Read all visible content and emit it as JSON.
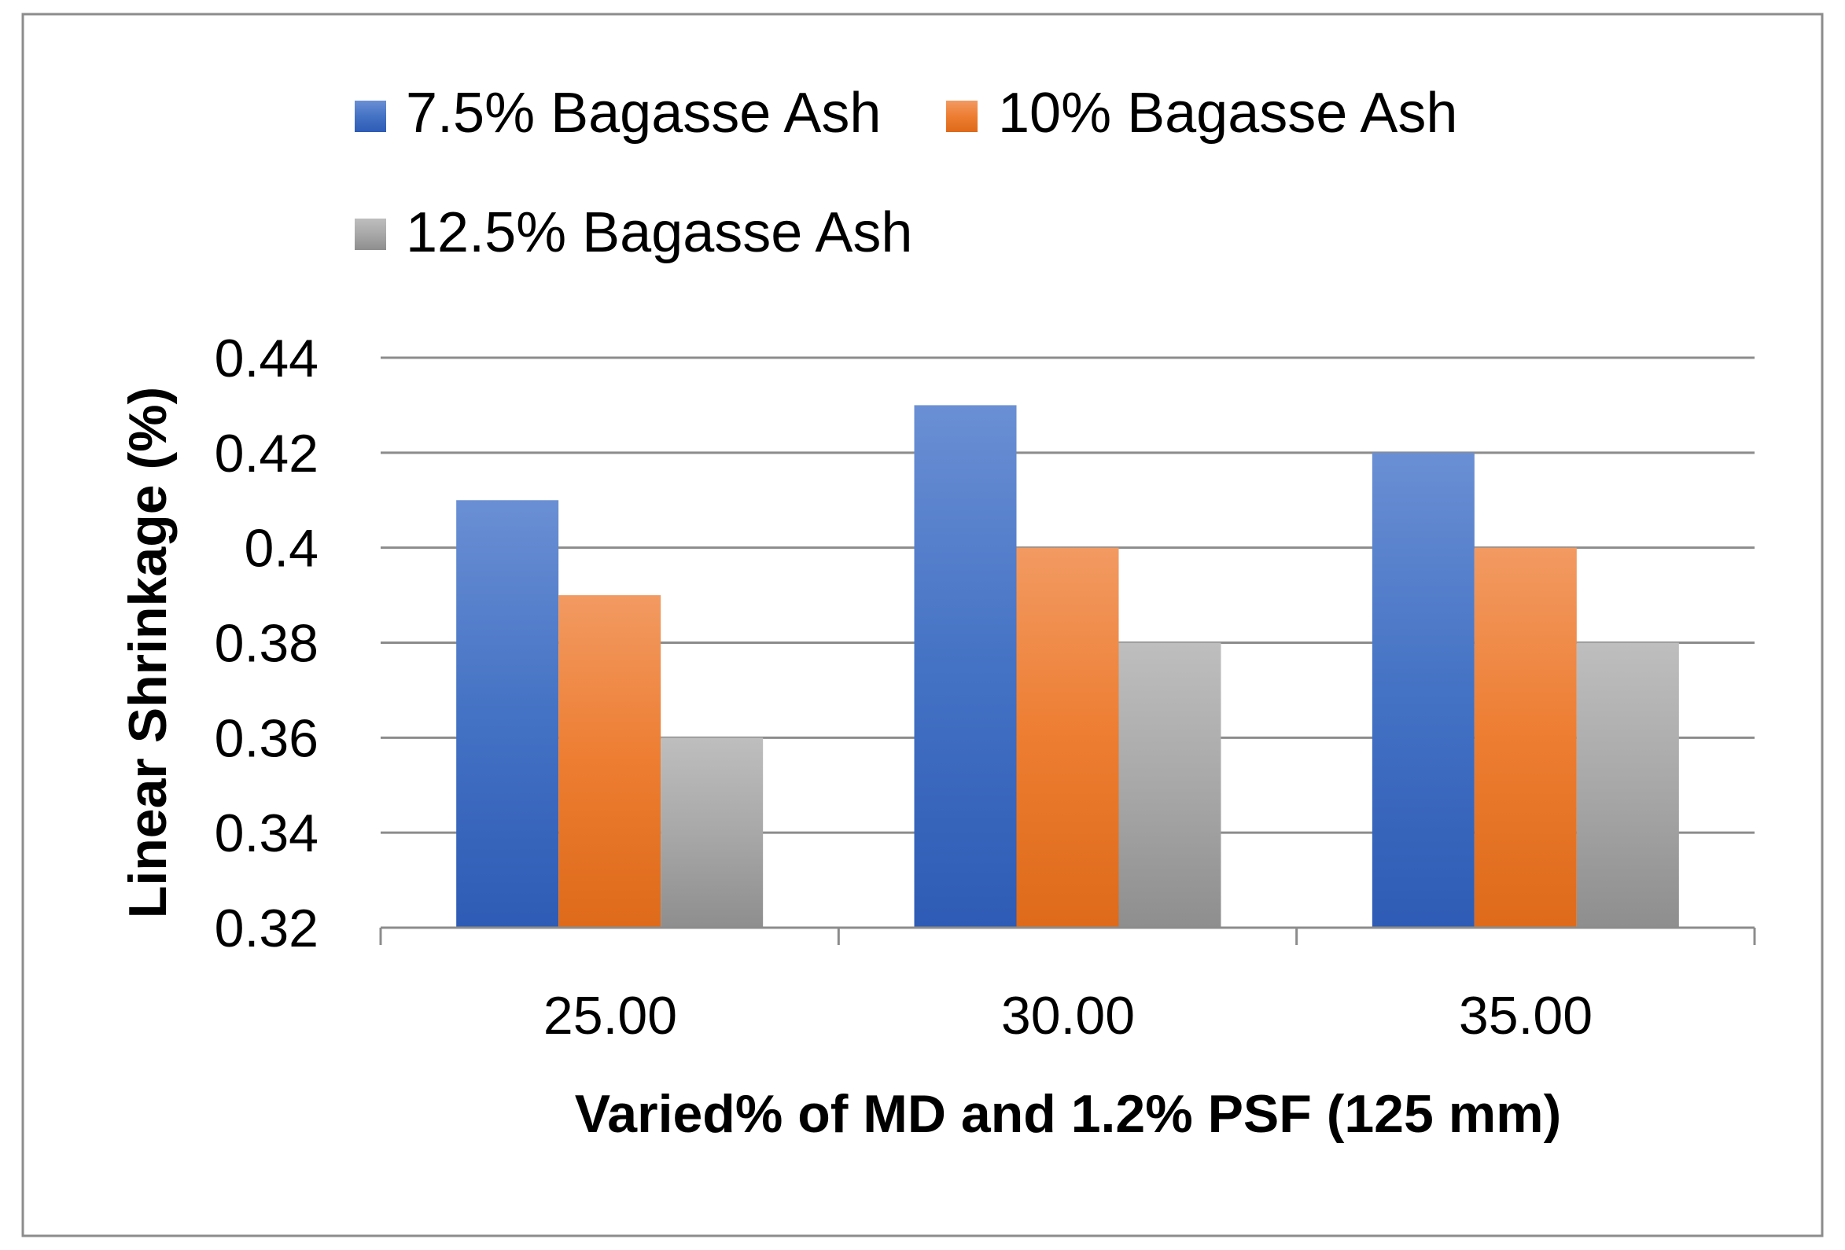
{
  "chart_data": {
    "type": "bar",
    "title": "",
    "categories": [
      "25.00",
      "30.00",
      "35.00"
    ],
    "series": [
      {
        "name": "7.5% Bagasse Ash",
        "values": [
          0.41,
          0.43,
          0.42
        ],
        "color": "#4472C4"
      },
      {
        "name": "10% Bagasse Ash",
        "values": [
          0.39,
          0.4,
          0.4
        ],
        "color": "#ED7D31"
      },
      {
        "name": "12.5% Bagasse Ash",
        "values": [
          0.36,
          0.38,
          0.38
        ],
        "color": "#A5A5A5"
      }
    ],
    "xlabel": "Varied% of MD and 1.2% PSF (125 mm)",
    "ylabel": "Linear Shrinkage (%)",
    "ylim": [
      0.32,
      0.44
    ],
    "yticks": [
      "0.32",
      "0.34",
      "0.36",
      "0.38",
      "0.4",
      "0.42",
      "0.44"
    ],
    "grid": true,
    "legend_position": "top"
  }
}
